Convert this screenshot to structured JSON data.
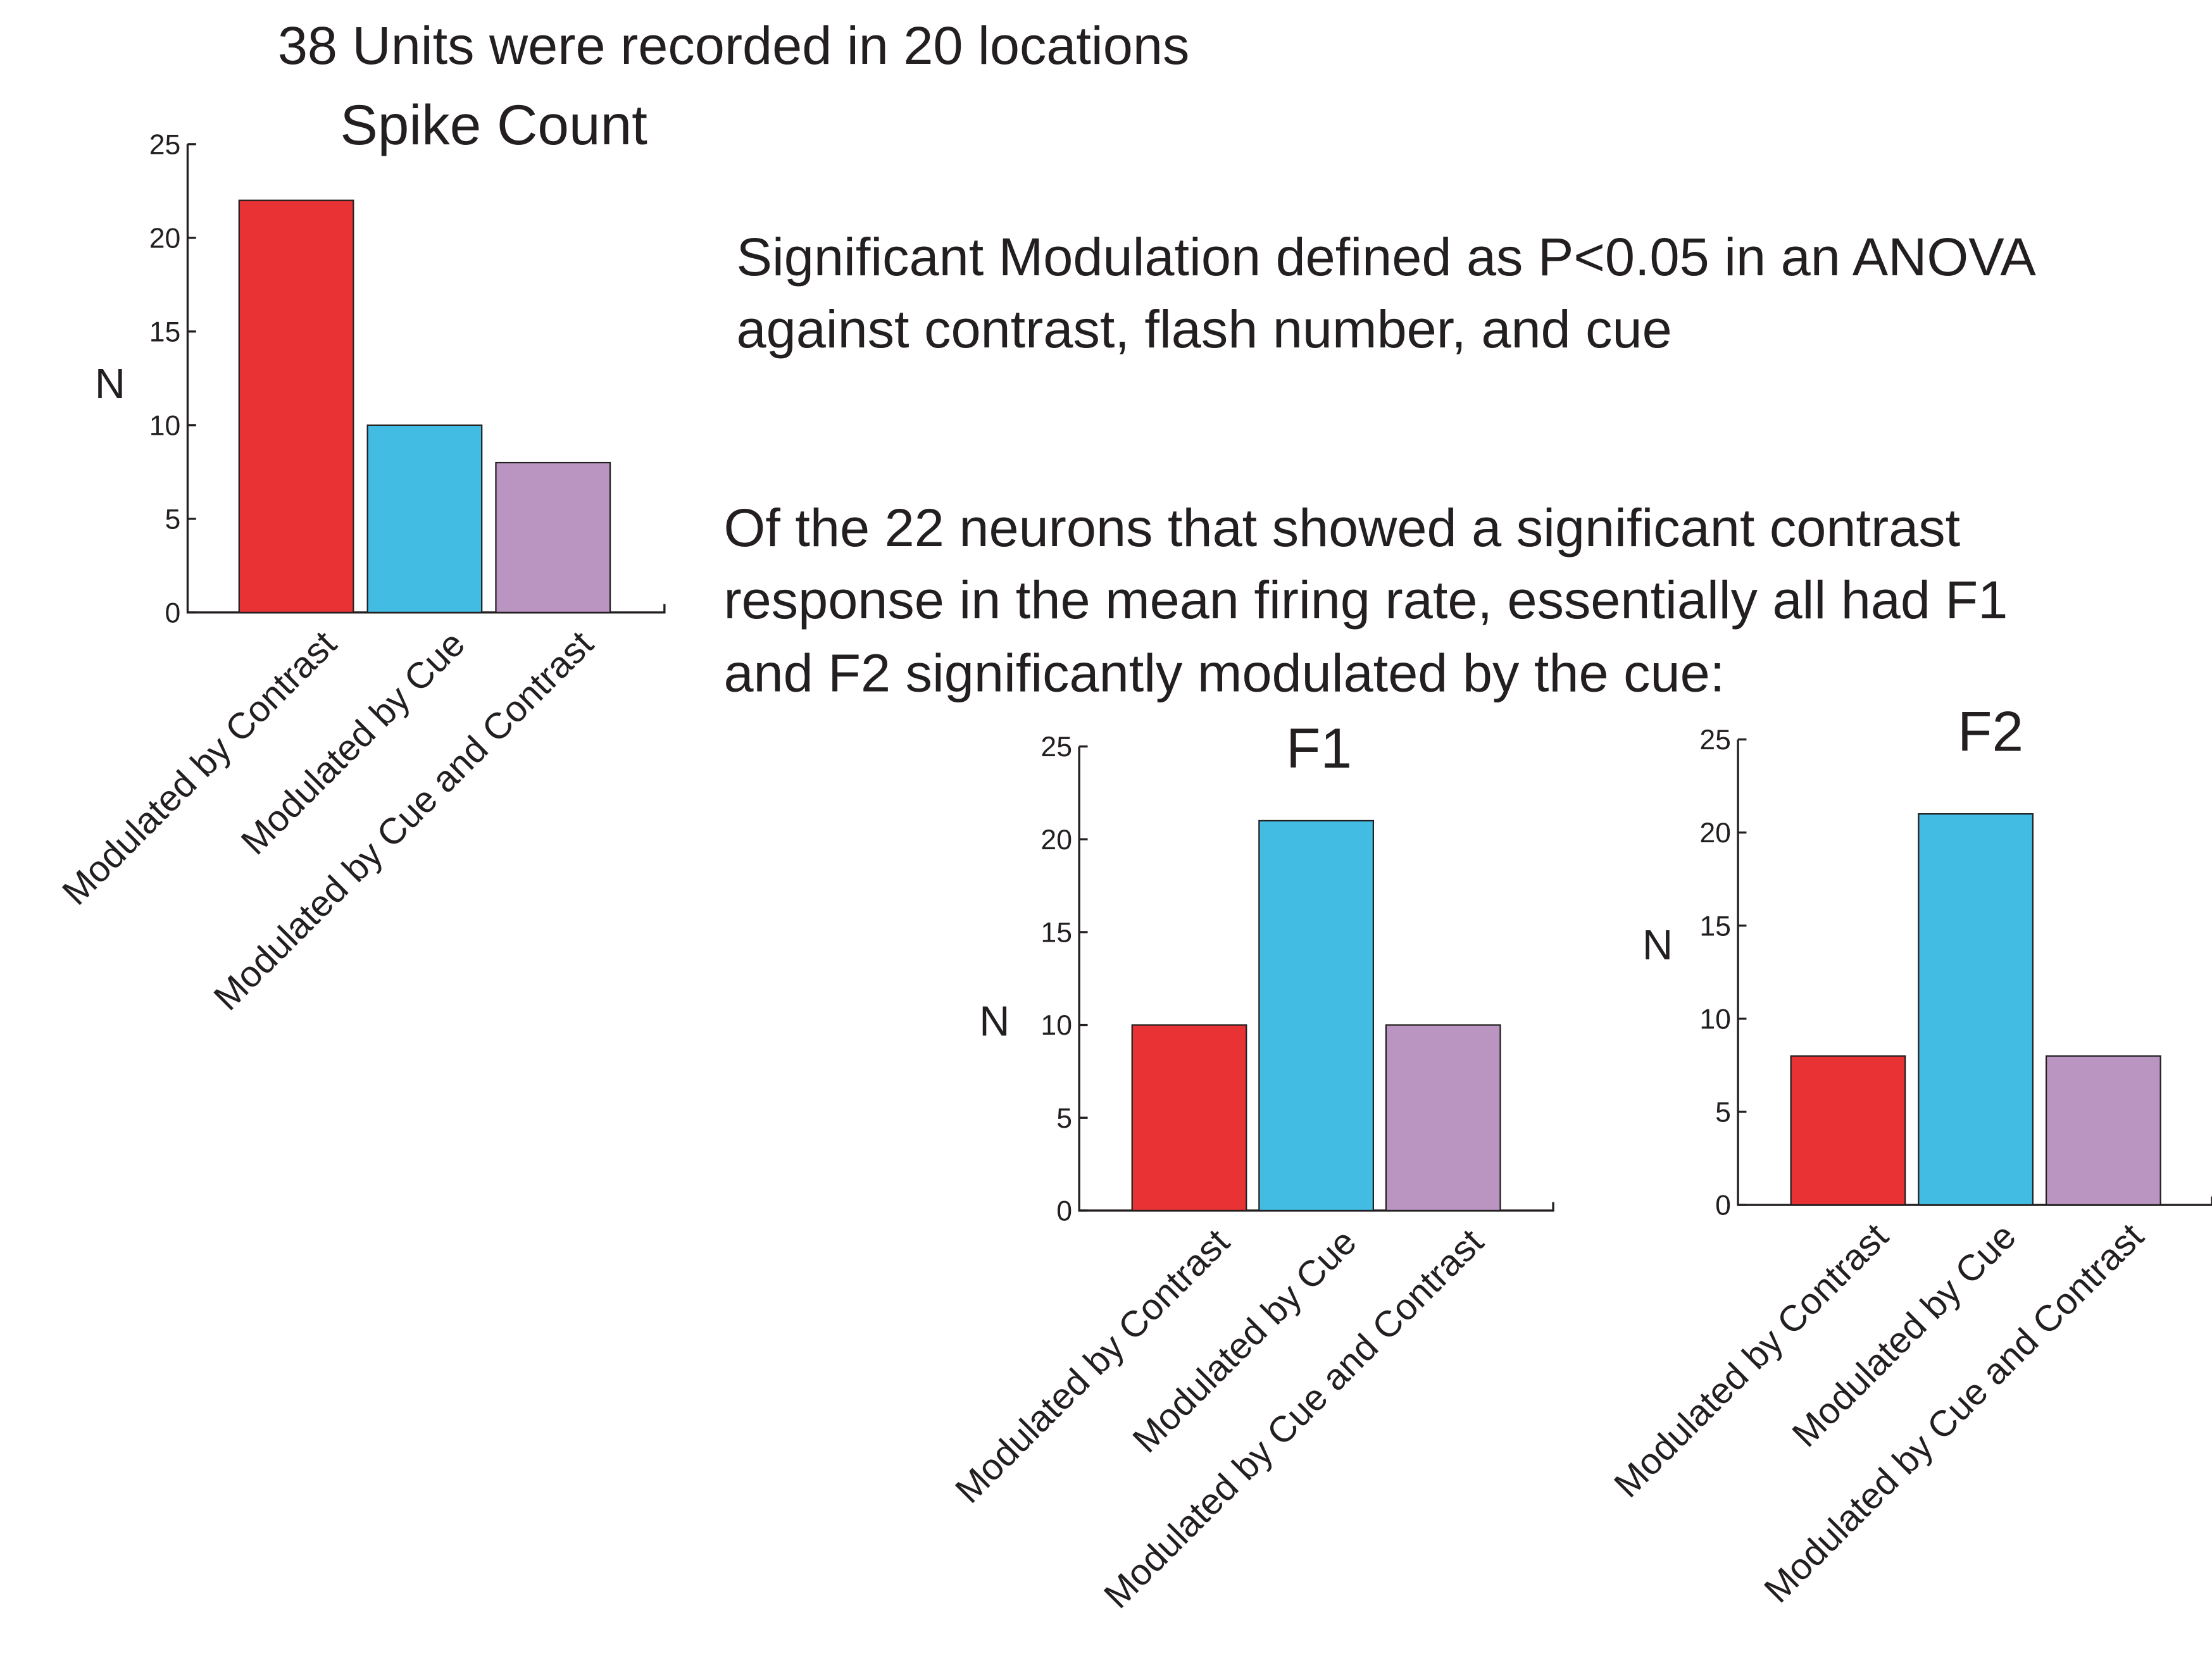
{
  "header": "38 Units were recorded in 20 locations",
  "notes": [
    [
      "Significant Modulation defined as P<0.05 in an ANOVA",
      "against contrast, flash number, and cue"
    ],
    [
      "Of the 22 neurons that showed a significant contrast",
      "response in the mean firing rate, essentially all had F1",
      "and F2 significantly modulated by the cue:"
    ]
  ],
  "chart_data": [
    {
      "type": "bar",
      "title": "Spike Count",
      "ylabel": "N",
      "categories": [
        "Modulated by Contrast",
        "Modulated by Cue",
        "Modulated by Cue and Contrast"
      ],
      "values": [
        22,
        10,
        8
      ],
      "colors": [
        "#e93233",
        "#43bce4",
        "#ba95c1"
      ],
      "ylim": [
        0,
        25
      ],
      "yticks": [
        0,
        5,
        10,
        15,
        20,
        25
      ]
    },
    {
      "type": "bar",
      "title": "F1",
      "ylabel": "N",
      "categories": [
        "Modulated by Contrast",
        "Modulated by Cue",
        "Modulated by Cue and Contrast"
      ],
      "values": [
        10,
        21,
        10
      ],
      "colors": [
        "#e93233",
        "#43bce4",
        "#ba95c1"
      ],
      "ylim": [
        0,
        25
      ],
      "yticks": [
        0,
        5,
        10,
        15,
        20,
        25
      ]
    },
    {
      "type": "bar",
      "title": "F2",
      "ylabel": "N",
      "categories": [
        "Modulated by Contrast",
        "Modulated by Cue",
        "Modulated by Cue and Contrast"
      ],
      "values": [
        8,
        21,
        8
      ],
      "colors": [
        "#e93233",
        "#43bce4",
        "#ba95c1"
      ],
      "ylim": [
        0,
        25
      ],
      "yticks": [
        0,
        5,
        10,
        15,
        20,
        25
      ]
    }
  ]
}
